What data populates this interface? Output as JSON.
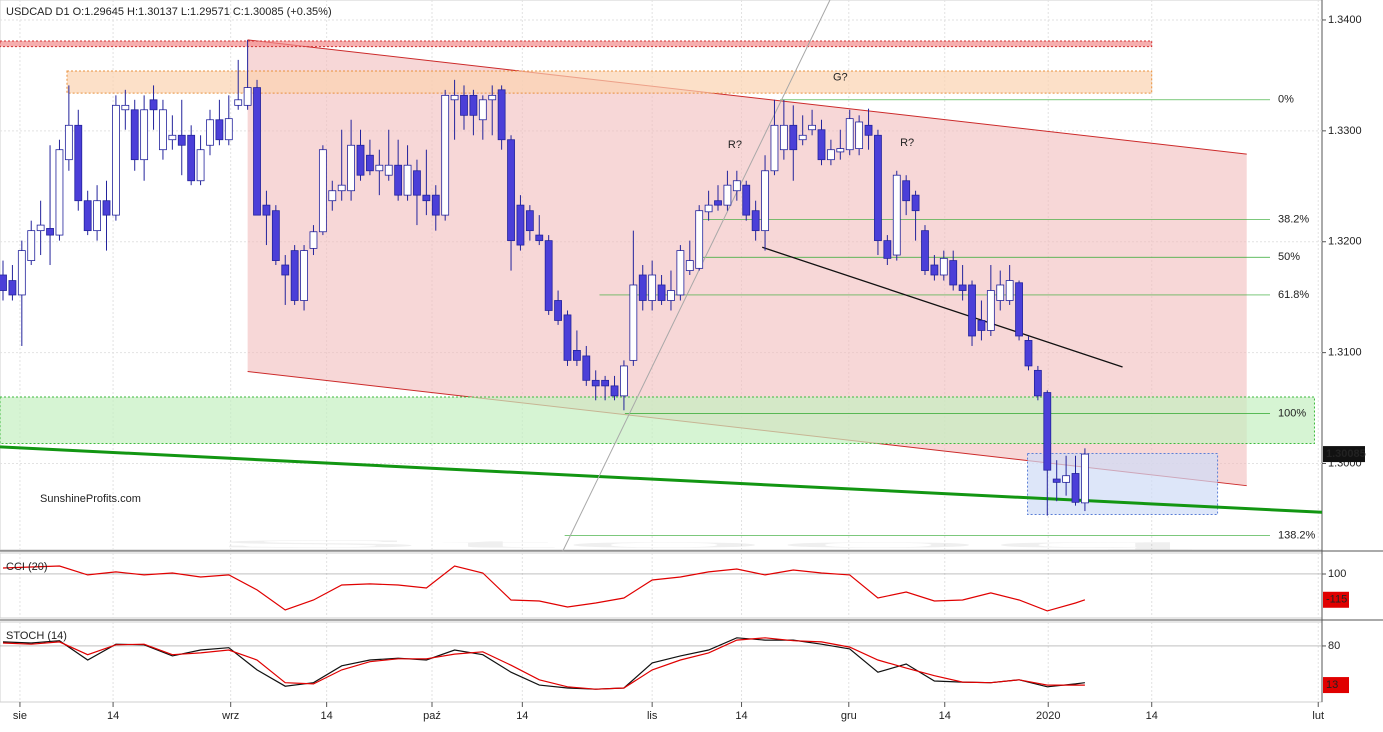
{
  "chart_data": [
    {
      "type": "candlestick",
      "title": "USDCAD  D1  O:1.29645  H:1.30137  L:1.29571  C:1.30085  (+0.35%)",
      "watermark": "Stooq",
      "brand": "SunshineProfits.com",
      "x": [
        0,
        1,
        2,
        3,
        4,
        5,
        6,
        7,
        8,
        9,
        10,
        11,
        12,
        13,
        14,
        15,
        16,
        17,
        18,
        19,
        20,
        21,
        22,
        23,
        24,
        25,
        26,
        27,
        28,
        29,
        30,
        31,
        32,
        33,
        34,
        35,
        36,
        37,
        38,
        39,
        40,
        41,
        42,
        43,
        44,
        45,
        46,
        47,
        48,
        49,
        50,
        51,
        52,
        53,
        54,
        55,
        56,
        57,
        58,
        59,
        60,
        61,
        62,
        63,
        64,
        65,
        66,
        67,
        68,
        69,
        70,
        71,
        72,
        73,
        74,
        75,
        76,
        77,
        78,
        79,
        80,
        81,
        82,
        83,
        84,
        85,
        86,
        87,
        88,
        89,
        90,
        91,
        92,
        93,
        94,
        95,
        96,
        97,
        98,
        99,
        100,
        101,
        102,
        103,
        104,
        105,
        106,
        107,
        108,
        109,
        110,
        111,
        112,
        113,
        114,
        115
      ],
      "open": [
        1.317,
        1.3165,
        1.3152,
        1.3183,
        1.321,
        1.3212,
        1.3206,
        1.3274,
        1.3305,
        1.3237,
        1.321,
        1.3237,
        1.3224,
        1.3319,
        1.3319,
        1.3274,
        1.3328,
        1.3283,
        1.3292,
        1.3296,
        1.3296,
        1.3255,
        1.3287,
        1.331,
        1.3292,
        1.3323,
        1.3323,
        1.3339,
        1.3233,
        1.3228,
        1.3179,
        1.3192,
        1.3147,
        1.3194,
        1.3209,
        1.3237,
        1.3246,
        1.3246,
        1.3287,
        1.3278,
        1.3264,
        1.326,
        1.3269,
        1.3242,
        1.3264,
        1.3242,
        1.3242,
        1.3224,
        1.3328,
        1.3332,
        1.3332,
        1.331,
        1.3328,
        1.3337,
        1.3292,
        1.3233,
        1.3228,
        1.3206,
        1.3201,
        1.3147,
        1.3134,
        1.3102,
        1.3097,
        1.3075,
        1.3075,
        1.307,
        1.3061,
        1.3093,
        1.317,
        1.3147,
        1.3161,
        1.3147,
        1.3152,
        1.3174,
        1.3176,
        1.3227,
        1.3237,
        1.3233,
        1.3246,
        1.3251,
        1.3228,
        1.321,
        1.3264,
        1.3283,
        1.3305,
        1.3292,
        1.3301,
        1.3301,
        1.3274,
        1.3281,
        1.3283,
        1.3284,
        1.3305,
        1.3296,
        1.3201,
        1.3188,
        1.3255,
        1.3242,
        1.321,
        1.3179,
        1.317,
        1.3183,
        1.3161,
        1.3161,
        1.3129,
        1.312,
        1.3147,
        1.3147,
        1.3163,
        1.3111,
        1.3084,
        1.3064,
        1.2986,
        1.2983,
        1.2991,
        1.29645
      ],
      "high": [
        1.3183,
        1.3179,
        1.3201,
        1.3219,
        1.3237,
        1.3287,
        1.3292,
        1.3341,
        1.3319,
        1.3246,
        1.3251,
        1.3255,
        1.3332,
        1.3337,
        1.3328,
        1.3332,
        1.3341,
        1.3328,
        1.3314,
        1.3328,
        1.3305,
        1.3296,
        1.3319,
        1.3328,
        1.3332,
        1.3364,
        1.3382,
        1.3346,
        1.3246,
        1.3233,
        1.3188,
        1.3197,
        1.3197,
        1.3215,
        1.3287,
        1.3255,
        1.3301,
        1.331,
        1.3301,
        1.3292,
        1.3283,
        1.3301,
        1.3292,
        1.3287,
        1.3274,
        1.3283,
        1.3251,
        1.3337,
        1.3346,
        1.3341,
        1.3337,
        1.3332,
        1.3341,
        1.3341,
        1.3296,
        1.3242,
        1.3233,
        1.3224,
        1.3206,
        1.3156,
        1.3138,
        1.312,
        1.3106,
        1.3084,
        1.3079,
        1.3079,
        1.3093,
        1.321,
        1.3179,
        1.3183,
        1.317,
        1.3174,
        1.3197,
        1.3201,
        1.3233,
        1.3246,
        1.3251,
        1.3264,
        1.3264,
        1.3255,
        1.3237,
        1.3278,
        1.3328,
        1.3328,
        1.3323,
        1.3314,
        1.3319,
        1.331,
        1.3292,
        1.3301,
        1.3319,
        1.3314,
        1.332,
        1.3301,
        1.3206,
        1.3264,
        1.326,
        1.3246,
        1.3215,
        1.3188,
        1.3192,
        1.3192,
        1.3179,
        1.3165,
        1.3147,
        1.3179,
        1.3174,
        1.3179,
        1.3165,
        1.3115,
        1.3088,
        1.3066,
        1.3003,
        1.3007,
        1.3007,
        1.30137
      ],
      "low": [
        1.3147,
        1.3147,
        1.3106,
        1.3179,
        1.3188,
        1.3179,
        1.3201,
        1.3264,
        1.3228,
        1.3206,
        1.3201,
        1.3192,
        1.3219,
        1.3301,
        1.3264,
        1.3255,
        1.3301,
        1.3274,
        1.3283,
        1.326,
        1.3251,
        1.3251,
        1.3278,
        1.3287,
        1.3287,
        1.3319,
        1.3319,
        1.3224,
        1.3197,
        1.3179,
        1.3143,
        1.3143,
        1.3138,
        1.3188,
        1.3206,
        1.3228,
        1.3237,
        1.3237,
        1.3255,
        1.326,
        1.3242,
        1.3255,
        1.3237,
        1.3237,
        1.3215,
        1.3224,
        1.321,
        1.3219,
        1.3292,
        1.3301,
        1.3296,
        1.3292,
        1.3296,
        1.3283,
        1.3174,
        1.3192,
        1.3201,
        1.3197,
        1.3134,
        1.3125,
        1.3088,
        1.3088,
        1.307,
        1.3057,
        1.3057,
        1.3057,
        1.3048,
        1.3088,
        1.3138,
        1.3138,
        1.3143,
        1.3138,
        1.3147,
        1.317,
        1.3174,
        1.3219,
        1.3228,
        1.3228,
        1.3237,
        1.3219,
        1.3201,
        1.3192,
        1.326,
        1.3274,
        1.3255,
        1.3287,
        1.3296,
        1.3269,
        1.3269,
        1.3274,
        1.3278,
        1.3278,
        1.3283,
        1.3188,
        1.3179,
        1.3183,
        1.3224,
        1.3201,
        1.317,
        1.3165,
        1.3165,
        1.3156,
        1.3147,
        1.3106,
        1.3111,
        1.3115,
        1.3138,
        1.3143,
        1.3111,
        1.3084,
        1.3057,
        1.2953,
        1.2966,
        1.2971,
        1.2962,
        1.29571
      ],
      "close": [
        1.3156,
        1.3152,
        1.3192,
        1.321,
        1.3215,
        1.3206,
        1.3283,
        1.3305,
        1.3237,
        1.321,
        1.3237,
        1.3224,
        1.3323,
        1.3323,
        1.3274,
        1.3319,
        1.3319,
        1.3319,
        1.3296,
        1.3287,
        1.3255,
        1.3283,
        1.331,
        1.3292,
        1.3311,
        1.3328,
        1.3339,
        1.3224,
        1.3224,
        1.3183,
        1.317,
        1.3147,
        1.3192,
        1.3209,
        1.3283,
        1.3246,
        1.3251,
        1.3287,
        1.326,
        1.3264,
        1.3269,
        1.3269,
        1.3242,
        1.3269,
        1.3242,
        1.3237,
        1.3224,
        1.3332,
        1.3332,
        1.3314,
        1.3314,
        1.3328,
        1.3332,
        1.3292,
        1.3201,
        1.3197,
        1.321,
        1.3201,
        1.3138,
        1.3129,
        1.3093,
        1.3093,
        1.3075,
        1.307,
        1.307,
        1.3061,
        1.3088,
        1.3161,
        1.3147,
        1.317,
        1.3147,
        1.3156,
        1.3192,
        1.3183,
        1.3228,
        1.3233,
        1.3233,
        1.3251,
        1.3255,
        1.3224,
        1.321,
        1.3264,
        1.3305,
        1.3305,
        1.3283,
        1.3296,
        1.3305,
        1.3274,
        1.3283,
        1.3284,
        1.3311,
        1.3308,
        1.3296,
        1.3201,
        1.3185,
        1.326,
        1.3237,
        1.3228,
        1.3174,
        1.317,
        1.3185,
        1.3161,
        1.3156,
        1.3115,
        1.312,
        1.3156,
        1.3161,
        1.3165,
        1.3115,
        1.3088,
        1.3061,
        1.2994,
        1.2983,
        1.2989,
        1.2965,
        1.30085
      ],
      "up_color": "#ffffff",
      "down_color": "#4b3fd8",
      "wick_color": "#23239c",
      "xlim": [
        -0.32,
        140.2
      ],
      "ylim": [
        1.2922,
        1.3418
      ],
      "yticks": [
        {
          "value": 1.34,
          "label": "1.3400"
        },
        {
          "value": 1.33,
          "label": "1.3300"
        },
        {
          "value": 1.32,
          "label": "1.3200"
        },
        {
          "value": 1.31,
          "label": "1.3100"
        },
        {
          "value": 1.3,
          "label": "1.3000"
        }
      ],
      "last_price_label": "1.30085",
      "zones": [
        {
          "x": [
            -0.32,
            122.1
          ],
          "y": [
            1.3376,
            1.3381
          ],
          "fill": "#f28c8c",
          "stroke": "#d03030"
        },
        {
          "x": [
            6.8,
            122.1
          ],
          "y": [
            1.3334,
            1.3354
          ],
          "fill": "#fbd3b0",
          "stroke": "#e8903c"
        },
        {
          "x": [
            -0.32,
            139.4
          ],
          "y": [
            1.3018,
            1.306
          ],
          "fill": "#c4f0c0",
          "stroke": "#3cba3c"
        },
        {
          "x": [
            108.9,
            129.1
          ],
          "y": [
            1.2954,
            1.3009
          ],
          "fill": "#cfdcf6",
          "stroke": "#5b7fd6"
        }
      ],
      "channel": {
        "x": [
          26.0,
          132.2
        ],
        "upper": [
          1.3382,
          1.3279
        ],
        "lower": [
          1.3083,
          1.298
        ],
        "color": "#cc2a2a",
        "fill": "#f2bcbc"
      },
      "lines": [
        {
          "x": [
            -0.32,
            140.2
          ],
          "y": [
            1.3015,
            1.2956
          ],
          "color": "#129612",
          "width": 3
        },
        {
          "x": [
            80.7,
            119.0
          ],
          "y": [
            1.3195,
            1.3087
          ],
          "color": "#111111",
          "width": 1.3
        },
        {
          "x": [
            59.5,
            87.9
          ],
          "y": [
            1.2921,
            1.3418
          ],
          "color": "#a8a8a8",
          "width": 1
        }
      ],
      "fib_levels": [
        {
          "label": "0%",
          "value": 1.3328,
          "from": 82.6
        },
        {
          "label": "38.2%",
          "value": 1.322,
          "from": 74.1
        },
        {
          "label": "50%",
          "value": 1.3186,
          "from": 74.1
        },
        {
          "label": "61.8%",
          "value": 1.3152,
          "from": 63.4
        },
        {
          "label": "100%",
          "value": 1.3045,
          "from": 66.1
        },
        {
          "label": "138.2%",
          "value": 1.2935,
          "from": 59.7
        }
      ],
      "fib_color": "#2ea82e",
      "annotations": [
        {
          "text": "G?",
          "x": 89.0,
          "y": 1.3348
        },
        {
          "text": "R?",
          "x": 77.8,
          "y": 1.3287
        },
        {
          "text": "R?",
          "x": 96.1,
          "y": 1.3289
        }
      ]
    },
    {
      "type": "line",
      "label": "CCI (20)",
      "x": [
        0,
        3,
        6,
        9,
        12,
        15,
        18,
        21,
        24,
        27,
        30,
        33,
        36,
        39,
        42,
        45,
        48,
        51,
        54,
        57,
        60,
        63,
        66,
        69,
        72,
        75,
        78,
        81,
        84,
        87,
        90,
        93,
        96,
        99,
        102,
        105,
        108,
        111,
        114,
        115
      ],
      "series": [
        {
          "color": "#e00000",
          "values": [
            150,
            158,
            167,
            92,
            117,
            92,
            108,
            75,
            92,
            -33,
            -200,
            -117,
            8,
            17,
            8,
            -17,
            167,
            108,
            -117,
            -125,
            -175,
            -142,
            -100,
            50,
            75,
            117,
            142,
            92,
            133,
            108,
            92,
            -100,
            -50,
            -125,
            -117,
            -58,
            -117,
            -208,
            -142,
            -115
          ]
        }
      ],
      "xlim": [
        -0.32,
        140.2
      ],
      "ylim": [
        -267,
        275
      ],
      "yticks": [
        100
      ]
    },
    {
      "type": "line",
      "label": "STOCH (14)",
      "x": [
        0,
        3,
        6,
        9,
        12,
        15,
        18,
        21,
        24,
        27,
        30,
        33,
        36,
        39,
        42,
        45,
        48,
        51,
        54,
        57,
        60,
        63,
        66,
        69,
        72,
        75,
        78,
        81,
        84,
        87,
        90,
        93,
        96,
        99,
        102,
        105,
        108,
        111,
        114,
        115
      ],
      "series": [
        {
          "color": "#111111",
          "values": [
            87,
            85,
            89,
            56,
            83,
            82,
            63,
            73,
            77,
            39,
            11,
            17,
            46,
            56,
            59,
            56,
            73,
            65,
            35,
            13,
            8,
            6,
            8,
            51,
            63,
            73,
            94,
            90,
            90,
            83,
            75,
            35,
            49,
            20,
            18,
            17,
            22,
            10,
            15,
            17
          ]
        },
        {
          "color": "#e00000",
          "values": [
            85,
            83,
            87,
            65,
            82,
            83,
            65,
            68,
            73,
            56,
            17,
            15,
            39,
            53,
            58,
            58,
            66,
            70,
            47,
            22,
            10,
            6,
            8,
            39,
            56,
            68,
            90,
            94,
            89,
            87,
            78,
            56,
            42,
            29,
            18,
            17,
            22,
            13,
            13,
            13
          ]
        }
      ],
      "xlim": [
        -0.32,
        140.2
      ],
      "ylim": [
        -16,
        121
      ],
      "yticks": [
        80
      ],
      "xticks": [
        {
          "value": 1.8,
          "label": "sie"
        },
        {
          "value": 11.7,
          "label": "14"
        },
        {
          "value": 24.2,
          "label": "wrz"
        },
        {
          "value": 34.4,
          "label": "14"
        },
        {
          "value": 45.6,
          "label": "paź"
        },
        {
          "value": 55.2,
          "label": "14"
        },
        {
          "value": 69.0,
          "label": "lis"
        },
        {
          "value": 78.5,
          "label": "14"
        },
        {
          "value": 89.9,
          "label": "gru"
        },
        {
          "value": 100.1,
          "label": "14"
        },
        {
          "value": 111.1,
          "label": "2020"
        },
        {
          "value": 122.1,
          "label": "14"
        },
        {
          "value": 139.8,
          "label": "lut"
        }
      ]
    }
  ]
}
